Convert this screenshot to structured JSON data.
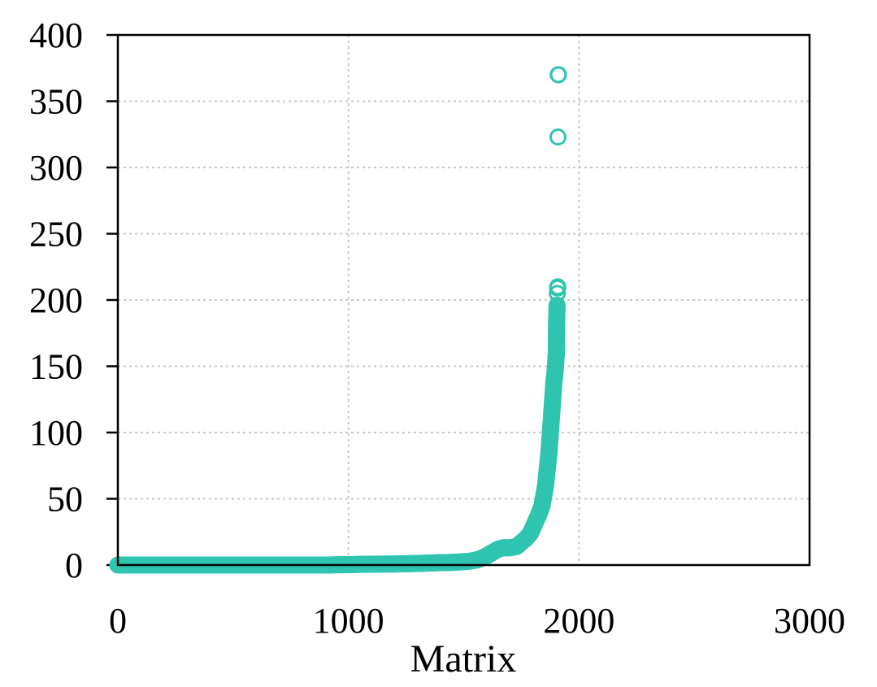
{
  "chart_data": {
    "type": "scatter",
    "title": "",
    "xlabel": "Matrix",
    "ylabel": "",
    "xlim": [
      0,
      3000
    ],
    "ylim": [
      0,
      400
    ],
    "xticks": [
      0,
      1000,
      2000,
      3000
    ],
    "yticks": [
      0,
      50,
      100,
      150,
      200,
      250,
      300,
      350,
      400
    ],
    "xtick_labels": [
      "0",
      "1000",
      "2000",
      "3000"
    ],
    "ytick_labels": [
      "0",
      "50",
      "100",
      "150",
      "200",
      "250",
      "300",
      "350",
      "400"
    ],
    "grid": true,
    "legend": "none",
    "marker": "open-circle",
    "color": "#2ec4b0",
    "series": [
      {
        "values_description": "sorted per-matrix values",
        "x": [
          0,
          50,
          100,
          150,
          200,
          250,
          300,
          350,
          400,
          450,
          500,
          550,
          600,
          650,
          700,
          750,
          800,
          850,
          900,
          950,
          1000,
          1050,
          1100,
          1150,
          1200,
          1250,
          1300,
          1350,
          1400,
          1450,
          1500,
          1530,
          1560,
          1590,
          1610,
          1630,
          1650,
          1670,
          1700,
          1730,
          1750,
          1770,
          1790,
          1800,
          1810,
          1820,
          1830,
          1840,
          1845,
          1850,
          1855,
          1858,
          1861,
          1864,
          1867,
          1870,
          1872,
          1874,
          1876,
          1878,
          1880,
          1882,
          1884,
          1886,
          1888,
          1890,
          1892,
          1894,
          1896,
          1898,
          1900,
          1901,
          1902,
          1903,
          1904,
          1905,
          1906,
          1907,
          1908,
          1909,
          1910,
          1911
        ],
        "y": [
          0,
          0,
          0,
          0,
          0,
          0,
          0,
          0,
          0,
          0,
          0,
          0,
          0,
          0,
          0,
          0,
          0,
          0,
          0,
          0.2,
          0.3,
          0.5,
          0.6,
          0.7,
          0.8,
          1,
          1.2,
          1.5,
          1.8,
          2,
          2.5,
          3,
          4,
          6,
          8,
          10,
          12,
          13,
          13,
          14,
          17,
          20,
          24,
          28,
          32,
          36,
          40,
          45,
          50,
          55,
          60,
          65,
          70,
          75,
          80,
          85,
          90,
          95,
          100,
          105,
          110,
          115,
          120,
          125,
          130,
          135,
          140,
          142,
          145,
          150,
          155,
          158,
          160,
          185,
          190,
          196,
          205,
          209,
          210,
          323,
          370,
          370
        ]
      }
    ]
  }
}
